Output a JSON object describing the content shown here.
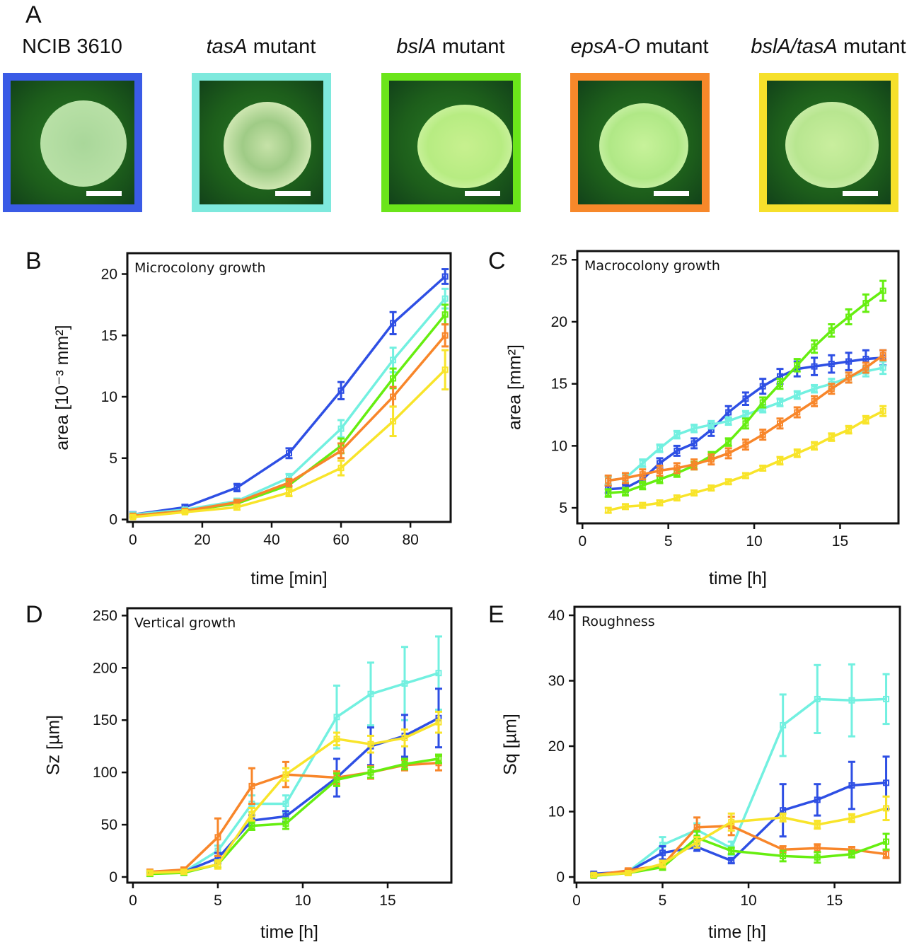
{
  "panel_a": {
    "letter": "A",
    "strains": [
      {
        "italic": "",
        "rest": "NCIB 3610",
        "border_color": "#3a5be6"
      },
      {
        "italic": "tasA",
        "rest": " mutant",
        "border_color": "#7ee9dd"
      },
      {
        "italic": "bslA",
        "rest": " mutant",
        "border_color": "#6be51a"
      },
      {
        "italic": "epsA-O",
        "rest": " mutant",
        "border_color": "#f7882a"
      },
      {
        "italic": "bslA/tasA",
        "rest": " mutant",
        "border_color": "#f6e02b"
      }
    ]
  },
  "series_colors": [
    "#2e4fe4",
    "#72f0e0",
    "#66ee10",
    "#f8862a",
    "#f8e42a"
  ],
  "chart_data": [
    {
      "panel": "B",
      "type": "line",
      "title": "Microcolony growth",
      "xlabel": "time [min]",
      "ylabel": "area [10⁻³ mm²]",
      "xlim": [
        -1.6,
        91.6
      ],
      "ylim": [
        -0.2,
        21.7
      ],
      "xticks": [
        0,
        20,
        40,
        60,
        80
      ],
      "yticks": [
        0,
        5,
        10,
        15,
        20
      ],
      "grid": false,
      "x": [
        0,
        15,
        30,
        45,
        60,
        75,
        90
      ],
      "series": [
        {
          "color": "#2e4fe4",
          "values": [
            0.4,
            1.0,
            2.6,
            5.4,
            10.5,
            16.0,
            19.8
          ],
          "err": [
            0.2,
            0.2,
            0.3,
            0.4,
            0.7,
            0.9,
            0.6
          ]
        },
        {
          "color": "#72f0e0",
          "values": [
            0.4,
            0.8,
            1.5,
            3.4,
            7.4,
            13.0,
            18.0
          ],
          "err": [
            0.1,
            0.1,
            0.2,
            0.3,
            0.7,
            1.0,
            0.8
          ]
        },
        {
          "color": "#66ee10",
          "values": [
            0.3,
            0.7,
            1.3,
            2.8,
            6.0,
            11.5,
            16.7
          ],
          "err": [
            0.1,
            0.1,
            0.2,
            0.3,
            0.6,
            0.8,
            0.8
          ]
        },
        {
          "color": "#f8862a",
          "values": [
            0.3,
            0.7,
            1.4,
            3.0,
            5.6,
            10.0,
            15.0
          ],
          "err": [
            0.1,
            0.1,
            0.2,
            0.3,
            0.6,
            0.8,
            0.9
          ]
        },
        {
          "color": "#f8e42a",
          "values": [
            0.2,
            0.6,
            1.0,
            2.2,
            4.2,
            8.0,
            12.2
          ],
          "err": [
            0.1,
            0.1,
            0.2,
            0.3,
            0.6,
            1.2,
            1.6
          ]
        }
      ]
    },
    {
      "panel": "C",
      "type": "line",
      "title": "Macrocolony growth",
      "xlabel": "time [h]",
      "ylabel": "area [mm²]",
      "xlim": [
        -0.3,
        18.4
      ],
      "ylim": [
        3.75,
        25.7
      ],
      "xticks": [
        0,
        5,
        10,
        15
      ],
      "yticks": [
        5,
        10,
        15,
        20,
        25
      ],
      "grid": false,
      "x": [
        1.5,
        2.5,
        3.5,
        4.5,
        5.5,
        6.5,
        7.5,
        8.5,
        9.5,
        10.5,
        11.5,
        12.5,
        13.5,
        14.5,
        15.5,
        16.5,
        17.5
      ],
      "series": [
        {
          "color": "#2e4fe4",
          "values": [
            6.5,
            6.6,
            7.3,
            8.6,
            9.6,
            10.2,
            11.3,
            12.7,
            13.8,
            14.8,
            15.6,
            16.2,
            16.4,
            16.6,
            16.8,
            17.0,
            17.1
          ],
          "err": [
            0.3,
            0.3,
            0.3,
            0.4,
            0.4,
            0.4,
            0.5,
            0.5,
            0.5,
            0.6,
            0.6,
            0.6,
            0.7,
            0.7,
            0.7,
            0.7,
            0.6
          ]
        },
        {
          "color": "#72f0e0",
          "values": [
            7.2,
            7.4,
            8.6,
            9.8,
            10.9,
            11.4,
            11.7,
            12.0,
            12.5,
            13.0,
            13.5,
            14.1,
            14.6,
            15.0,
            15.5,
            16.0,
            16.3
          ],
          "err": [
            0.3,
            0.3,
            0.3,
            0.3,
            0.3,
            0.3,
            0.3,
            0.3,
            0.3,
            0.3,
            0.3,
            0.3,
            0.3,
            0.4,
            0.4,
            0.4,
            0.5
          ]
        },
        {
          "color": "#66ee10",
          "values": [
            6.2,
            6.3,
            6.8,
            7.3,
            7.8,
            8.4,
            9.2,
            10.3,
            11.8,
            13.5,
            15.0,
            16.5,
            18.0,
            19.3,
            20.4,
            21.5,
            22.5
          ],
          "err": [
            0.3,
            0.3,
            0.3,
            0.3,
            0.3,
            0.3,
            0.3,
            0.3,
            0.4,
            0.4,
            0.4,
            0.5,
            0.5,
            0.5,
            0.6,
            0.7,
            0.8
          ]
        },
        {
          "color": "#f8862a",
          "values": [
            7.2,
            7.4,
            7.7,
            8.0,
            8.2,
            8.5,
            8.9,
            9.4,
            10.1,
            10.9,
            11.8,
            12.7,
            13.6,
            14.6,
            15.5,
            16.3,
            17.3
          ],
          "err": [
            0.4,
            0.4,
            0.4,
            0.4,
            0.4,
            0.4,
            0.4,
            0.4,
            0.4,
            0.4,
            0.4,
            0.4,
            0.4,
            0.4,
            0.4,
            0.4,
            0.4
          ]
        },
        {
          "color": "#f8e42a",
          "values": [
            4.8,
            5.1,
            5.2,
            5.4,
            5.8,
            6.2,
            6.6,
            7.1,
            7.6,
            8.2,
            8.8,
            9.4,
            10.0,
            10.7,
            11.3,
            12.1,
            12.8
          ],
          "err": [
            0.2,
            0.2,
            0.2,
            0.2,
            0.2,
            0.2,
            0.2,
            0.2,
            0.2,
            0.2,
            0.3,
            0.3,
            0.3,
            0.3,
            0.3,
            0.3,
            0.4
          ]
        }
      ]
    },
    {
      "panel": "D",
      "type": "line",
      "title": "Vertical growth",
      "xlabel": "time [h]",
      "ylabel": "Sz [µm]",
      "xlim": [
        -0.33,
        18.75
      ],
      "ylim": [
        -5.4,
        257
      ],
      "xticks": [
        0,
        5,
        10,
        15
      ],
      "yticks": [
        0,
        50,
        100,
        150,
        200,
        250
      ],
      "grid": false,
      "x": [
        1,
        3,
        5,
        7,
        9,
        12,
        14,
        16,
        18
      ],
      "series": [
        {
          "color": "#72f0e0",
          "values": [
            4,
            5,
            25,
            70,
            70,
            153,
            175,
            185,
            195
          ],
          "err": [
            2,
            2,
            5,
            8,
            8,
            30,
            30,
            35,
            35
          ]
        },
        {
          "color": "#2e4fe4",
          "values": [
            4,
            5,
            18,
            54,
            58,
            95,
            125,
            135,
            152
          ],
          "err": [
            2,
            2,
            5,
            5,
            5,
            18,
            18,
            20,
            28
          ]
        },
        {
          "color": "#f8862a",
          "values": [
            5,
            7,
            38,
            87,
            98,
            95,
            100,
            107,
            109
          ],
          "err": [
            2,
            2,
            18,
            17,
            12,
            6,
            6,
            5,
            7
          ]
        },
        {
          "color": "#66ee10",
          "values": [
            3,
            4,
            12,
            49,
            51,
            93,
            100,
            108,
            113
          ],
          "err": [
            2,
            2,
            3,
            4,
            5,
            6,
            5,
            5,
            4
          ]
        },
        {
          "color": "#f8e42a",
          "values": [
            4,
            5,
            12,
            60,
            98,
            132,
            127,
            133,
            148
          ],
          "err": [
            2,
            2,
            4,
            6,
            6,
            6,
            8,
            8,
            10
          ]
        }
      ]
    },
    {
      "panel": "E",
      "type": "line",
      "title": "Roughness",
      "xlabel": "time [h]",
      "ylabel": "Sq [µm]",
      "xlim": [
        -0.12,
        18.8
      ],
      "ylim": [
        -0.86,
        41.3
      ],
      "xticks": [
        0,
        5,
        10,
        15
      ],
      "yticks": [
        0,
        10,
        20,
        30,
        40
      ],
      "grid": false,
      "x": [
        1,
        3,
        5,
        7,
        9,
        12,
        14,
        16,
        18
      ],
      "series": [
        {
          "color": "#72f0e0",
          "values": [
            0.3,
            0.8,
            4.9,
            7.2,
            4.4,
            23.2,
            27.2,
            27.0,
            27.2
          ],
          "err": [
            0.3,
            0.3,
            1.2,
            1.0,
            1.0,
            4.7,
            5.2,
            5.5,
            3.8
          ]
        },
        {
          "color": "#2e4fe4",
          "values": [
            0.5,
            0.8,
            3.7,
            4.6,
            2.5,
            10.2,
            11.8,
            14.0,
            14.4
          ],
          "err": [
            0.3,
            0.3,
            1.0,
            0.6,
            0.4,
            4.0,
            2.4,
            3.6,
            4.0
          ]
        },
        {
          "color": "#f8862a",
          "values": [
            0.3,
            1.0,
            1.8,
            7.6,
            7.8,
            4.2,
            4.4,
            4.2,
            3.5
          ],
          "err": [
            0.2,
            0.3,
            0.6,
            1.5,
            1.4,
            0.5,
            0.6,
            0.4,
            0.6
          ]
        },
        {
          "color": "#66ee10",
          "values": [
            0.2,
            0.6,
            1.5,
            6.0,
            4.0,
            3.2,
            3.0,
            3.5,
            5.4
          ],
          "err": [
            0.2,
            0.2,
            0.4,
            1.0,
            0.5,
            0.8,
            0.8,
            0.5,
            1.2
          ]
        },
        {
          "color": "#f8e42a",
          "values": [
            0.3,
            0.6,
            2.0,
            5.3,
            8.4,
            9.1,
            8.0,
            9.0,
            10.5
          ],
          "err": [
            0.2,
            0.3,
            0.5,
            0.8,
            1.3,
            0.6,
            0.6,
            0.6,
            1.8
          ]
        }
      ]
    }
  ]
}
